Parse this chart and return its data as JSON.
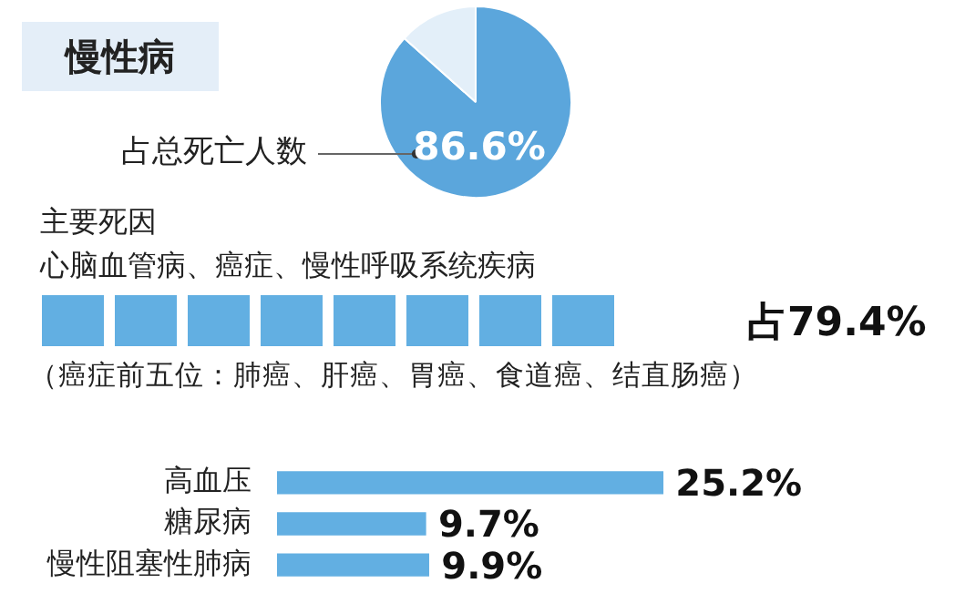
{
  "chart_data": [
    {
      "type": "pie",
      "title": "慢性病",
      "categories": [
        "占总死亡人数",
        null
      ],
      "values": [
        86.6,
        13.4
      ],
      "colors": [
        "#5ba6dc",
        "#e3eff9"
      ],
      "value_labels": [
        "86.6%",
        null
      ],
      "legend": false
    },
    {
      "type": "other",
      "title": "主要死因",
      "subtitle": "心脑血管病、癌症、慢性呼吸系统疾病",
      "annotations": [
        "占79.4%",
        "（癌症前五位：肺癌、肝癌、胃癌、食道癌、结直肠癌）"
      ]
    },
    {
      "type": "bar",
      "orientation": "horizontal",
      "categories": [
        "高血压",
        "糖尿病",
        "慢性阻塞性肺病"
      ],
      "values": [
        25.2,
        9.7,
        9.9
      ],
      "color": "#62afe2",
      "value_labels": [
        "25.2%",
        "9.7%",
        "9.9%"
      ],
      "legend": false
    }
  ]
}
